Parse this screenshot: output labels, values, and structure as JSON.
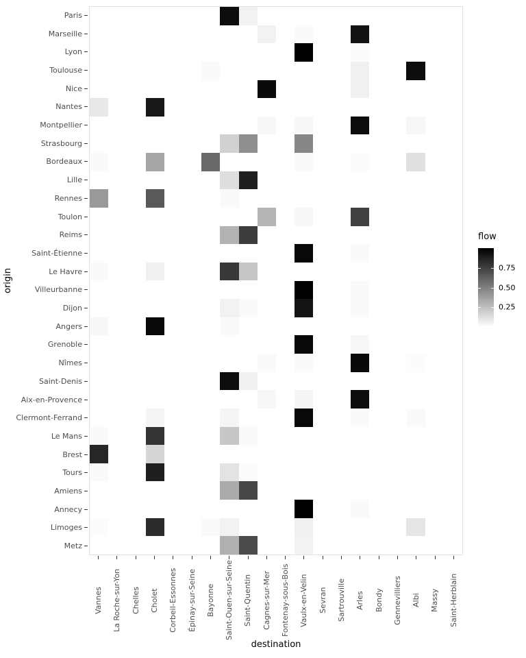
{
  "figure": {
    "background": "#ffffff"
  },
  "chart_data": {
    "type": "heatmap",
    "xlabel": "destination",
    "ylabel": "origin",
    "x_categories": [
      "Vannes",
      "La Roche-sur-Yon",
      "Chelles",
      "Cholet",
      "Corbeil-Essonnes",
      "Épinay-sur-Seine",
      "Bayonne",
      "Saint-Ouen-sur-Seine",
      "Saint-Quentin",
      "Cagnes-sur-Mer",
      "Fontenay-sous-Bois",
      "Vaulx-en-Velin",
      "Sevran",
      "Sartrouville",
      "Arles",
      "Bondy",
      "Gennevilliers",
      "Albi",
      "Massy",
      "Saint-Herblain"
    ],
    "y_categories": [
      "Paris",
      "Marseille",
      "Lyon",
      "Toulouse",
      "Nice",
      "Nantes",
      "Montpellier",
      "Strasbourg",
      "Bordeaux",
      "Lille",
      "Rennes",
      "Toulon",
      "Reims",
      "Saint-Étienne",
      "Le Havre",
      "Villeurbanne",
      "Dijon",
      "Angers",
      "Grenoble",
      "Nîmes",
      "Saint-Denis",
      "Aix-en-Provence",
      "Clermont-Ferrand",
      "Le Mans",
      "Brest",
      "Tours",
      "Amiens",
      "Annecy",
      "Limoges",
      "Metz"
    ],
    "legend": {
      "title": "flow",
      "position": "right",
      "scale_min": 0,
      "scale_max": 1,
      "ticks": [
        0.75,
        0.5,
        0.25
      ],
      "tick_labels": [
        "0.75",
        "0.50",
        "0.25"
      ],
      "gradient_low": "#ffffff",
      "gradient_high": "#000000"
    },
    "grid": false,
    "cells": [
      {
        "origin": "Paris",
        "destination": "Saint-Ouen-sur-Seine",
        "flow": 0.95
      },
      {
        "origin": "Paris",
        "destination": "Saint-Quentin",
        "flow": 0.05
      },
      {
        "origin": "Marseille",
        "destination": "Cagnes-sur-Mer",
        "flow": 0.05
      },
      {
        "origin": "Marseille",
        "destination": "Vaulx-en-Velin",
        "flow": 0.02
      },
      {
        "origin": "Marseille",
        "destination": "Arles",
        "flow": 0.93
      },
      {
        "origin": "Lyon",
        "destination": "Vaulx-en-Velin",
        "flow": 1.0
      },
      {
        "origin": "Lyon",
        "destination": "Arles",
        "flow": 0.01
      },
      {
        "origin": "Toulouse",
        "destination": "Bayonne",
        "flow": 0.02
      },
      {
        "origin": "Toulouse",
        "destination": "Arles",
        "flow": 0.06
      },
      {
        "origin": "Toulouse",
        "destination": "Albi",
        "flow": 0.95
      },
      {
        "origin": "Nice",
        "destination": "Cagnes-sur-Mer",
        "flow": 0.96
      },
      {
        "origin": "Nice",
        "destination": "Arles",
        "flow": 0.06
      },
      {
        "origin": "Nantes",
        "destination": "Vannes",
        "flow": 0.09
      },
      {
        "origin": "Nantes",
        "destination": "Cholet",
        "flow": 0.91
      },
      {
        "origin": "Montpellier",
        "destination": "Cagnes-sur-Mer",
        "flow": 0.03
      },
      {
        "origin": "Montpellier",
        "destination": "Vaulx-en-Velin",
        "flow": 0.03
      },
      {
        "origin": "Montpellier",
        "destination": "Arles",
        "flow": 0.95
      },
      {
        "origin": "Montpellier",
        "destination": "Albi",
        "flow": 0.03
      },
      {
        "origin": "Strasbourg",
        "destination": "Saint-Ouen-sur-Seine",
        "flow": 0.18
      },
      {
        "origin": "Strasbourg",
        "destination": "Saint-Quentin",
        "flow": 0.44
      },
      {
        "origin": "Strasbourg",
        "destination": "Vaulx-en-Velin",
        "flow": 0.47
      },
      {
        "origin": "Bordeaux",
        "destination": "Vannes",
        "flow": 0.02
      },
      {
        "origin": "Bordeaux",
        "destination": "Cholet",
        "flow": 0.35
      },
      {
        "origin": "Bordeaux",
        "destination": "Bayonne",
        "flow": 0.59
      },
      {
        "origin": "Bordeaux",
        "destination": "Vaulx-en-Velin",
        "flow": 0.02
      },
      {
        "origin": "Bordeaux",
        "destination": "Arles",
        "flow": 0.01
      },
      {
        "origin": "Bordeaux",
        "destination": "Albi",
        "flow": 0.12
      },
      {
        "origin": "Lille",
        "destination": "Saint-Ouen-sur-Seine",
        "flow": 0.13
      },
      {
        "origin": "Lille",
        "destination": "Saint-Quentin",
        "flow": 0.88
      },
      {
        "origin": "Rennes",
        "destination": "Vannes",
        "flow": 0.4
      },
      {
        "origin": "Rennes",
        "destination": "Cholet",
        "flow": 0.65
      },
      {
        "origin": "Rennes",
        "destination": "Saint-Ouen-sur-Seine",
        "flow": 0.02
      },
      {
        "origin": "Toulon",
        "destination": "Cagnes-sur-Mer",
        "flow": 0.29
      },
      {
        "origin": "Toulon",
        "destination": "Vaulx-en-Velin",
        "flow": 0.03
      },
      {
        "origin": "Toulon",
        "destination": "Arles",
        "flow": 0.75
      },
      {
        "origin": "Reims",
        "destination": "Saint-Ouen-sur-Seine",
        "flow": 0.3
      },
      {
        "origin": "Reims",
        "destination": "Saint-Quentin",
        "flow": 0.76
      },
      {
        "origin": "Saint-Étienne",
        "destination": "Vaulx-en-Velin",
        "flow": 0.97
      },
      {
        "origin": "Saint-Étienne",
        "destination": "Arles",
        "flow": 0.02
      },
      {
        "origin": "Le Havre",
        "destination": "Vannes",
        "flow": 0.02
      },
      {
        "origin": "Le Havre",
        "destination": "Cholet",
        "flow": 0.06
      },
      {
        "origin": "Le Havre",
        "destination": "Saint-Ouen-sur-Seine",
        "flow": 0.78
      },
      {
        "origin": "Le Havre",
        "destination": "Saint-Quentin",
        "flow": 0.22
      },
      {
        "origin": "Villeurbanne",
        "destination": "Vaulx-en-Velin",
        "flow": 1.0
      },
      {
        "origin": "Villeurbanne",
        "destination": "Arles",
        "flow": 0.02
      },
      {
        "origin": "Dijon",
        "destination": "Saint-Ouen-sur-Seine",
        "flow": 0.05
      },
      {
        "origin": "Dijon",
        "destination": "Saint-Quentin",
        "flow": 0.02
      },
      {
        "origin": "Dijon",
        "destination": "Vaulx-en-Velin",
        "flow": 0.92
      },
      {
        "origin": "Dijon",
        "destination": "Arles",
        "flow": 0.02
      },
      {
        "origin": "Angers",
        "destination": "Vannes",
        "flow": 0.03
      },
      {
        "origin": "Angers",
        "destination": "Cholet",
        "flow": 0.97
      },
      {
        "origin": "Angers",
        "destination": "Saint-Ouen-sur-Seine",
        "flow": 0.02
      },
      {
        "origin": "Grenoble",
        "destination": "Vaulx-en-Velin",
        "flow": 0.97
      },
      {
        "origin": "Grenoble",
        "destination": "Arles",
        "flow": 0.03
      },
      {
        "origin": "Nîmes",
        "destination": "Cagnes-sur-Mer",
        "flow": 0.02
      },
      {
        "origin": "Nîmes",
        "destination": "Vaulx-en-Velin",
        "flow": 0.02
      },
      {
        "origin": "Nîmes",
        "destination": "Arles",
        "flow": 0.96
      },
      {
        "origin": "Nîmes",
        "destination": "Albi",
        "flow": 0.01
      },
      {
        "origin": "Saint-Denis",
        "destination": "Saint-Ouen-sur-Seine",
        "flow": 0.95
      },
      {
        "origin": "Saint-Denis",
        "destination": "Saint-Quentin",
        "flow": 0.06
      },
      {
        "origin": "Aix-en-Provence",
        "destination": "Cagnes-sur-Mer",
        "flow": 0.03
      },
      {
        "origin": "Aix-en-Provence",
        "destination": "Vaulx-en-Velin",
        "flow": 0.04
      },
      {
        "origin": "Aix-en-Provence",
        "destination": "Arles",
        "flow": 0.95
      },
      {
        "origin": "Clermont-Ferrand",
        "destination": "Cholet",
        "flow": 0.04
      },
      {
        "origin": "Clermont-Ferrand",
        "destination": "Saint-Ouen-sur-Seine",
        "flow": 0.04
      },
      {
        "origin": "Clermont-Ferrand",
        "destination": "Vaulx-en-Velin",
        "flow": 0.97
      },
      {
        "origin": "Clermont-Ferrand",
        "destination": "Arles",
        "flow": 0.02
      },
      {
        "origin": "Clermont-Ferrand",
        "destination": "Albi",
        "flow": 0.02
      },
      {
        "origin": "Le Mans",
        "destination": "Vannes",
        "flow": 0.02
      },
      {
        "origin": "Le Mans",
        "destination": "Cholet",
        "flow": 0.8
      },
      {
        "origin": "Le Mans",
        "destination": "Saint-Ouen-sur-Seine",
        "flow": 0.22
      },
      {
        "origin": "Le Mans",
        "destination": "Saint-Quentin",
        "flow": 0.02
      },
      {
        "origin": "Brest",
        "destination": "Vannes",
        "flow": 0.85
      },
      {
        "origin": "Brest",
        "destination": "Cholet",
        "flow": 0.16
      },
      {
        "origin": "Tours",
        "destination": "Vannes",
        "flow": 0.02
      },
      {
        "origin": "Tours",
        "destination": "Cholet",
        "flow": 0.88
      },
      {
        "origin": "Tours",
        "destination": "Saint-Ouen-sur-Seine",
        "flow": 0.11
      },
      {
        "origin": "Tours",
        "destination": "Saint-Quentin",
        "flow": 0.01
      },
      {
        "origin": "Amiens",
        "destination": "Saint-Ouen-sur-Seine",
        "flow": 0.33
      },
      {
        "origin": "Amiens",
        "destination": "Saint-Quentin",
        "flow": 0.72
      },
      {
        "origin": "Annecy",
        "destination": "Vaulx-en-Velin",
        "flow": 1.0
      },
      {
        "origin": "Annecy",
        "destination": "Arles",
        "flow": 0.02
      },
      {
        "origin": "Limoges",
        "destination": "Vannes",
        "flow": 0.01
      },
      {
        "origin": "Limoges",
        "destination": "Cholet",
        "flow": 0.83
      },
      {
        "origin": "Limoges",
        "destination": "Bayonne",
        "flow": 0.02
      },
      {
        "origin": "Limoges",
        "destination": "Saint-Ouen-sur-Seine",
        "flow": 0.05
      },
      {
        "origin": "Limoges",
        "destination": "Vaulx-en-Velin",
        "flow": 0.06
      },
      {
        "origin": "Limoges",
        "destination": "Albi",
        "flow": 0.1
      },
      {
        "origin": "Metz",
        "destination": "Saint-Ouen-sur-Seine",
        "flow": 0.31
      },
      {
        "origin": "Metz",
        "destination": "Saint-Quentin",
        "flow": 0.71
      },
      {
        "origin": "Metz",
        "destination": "Vaulx-en-Velin",
        "flow": 0.05
      }
    ]
  },
  "colors": {
    "axis_text": "#4d4d4d",
    "axis_title": "#000000",
    "tick": "#333333",
    "panel_border": "#e2e2e2"
  }
}
